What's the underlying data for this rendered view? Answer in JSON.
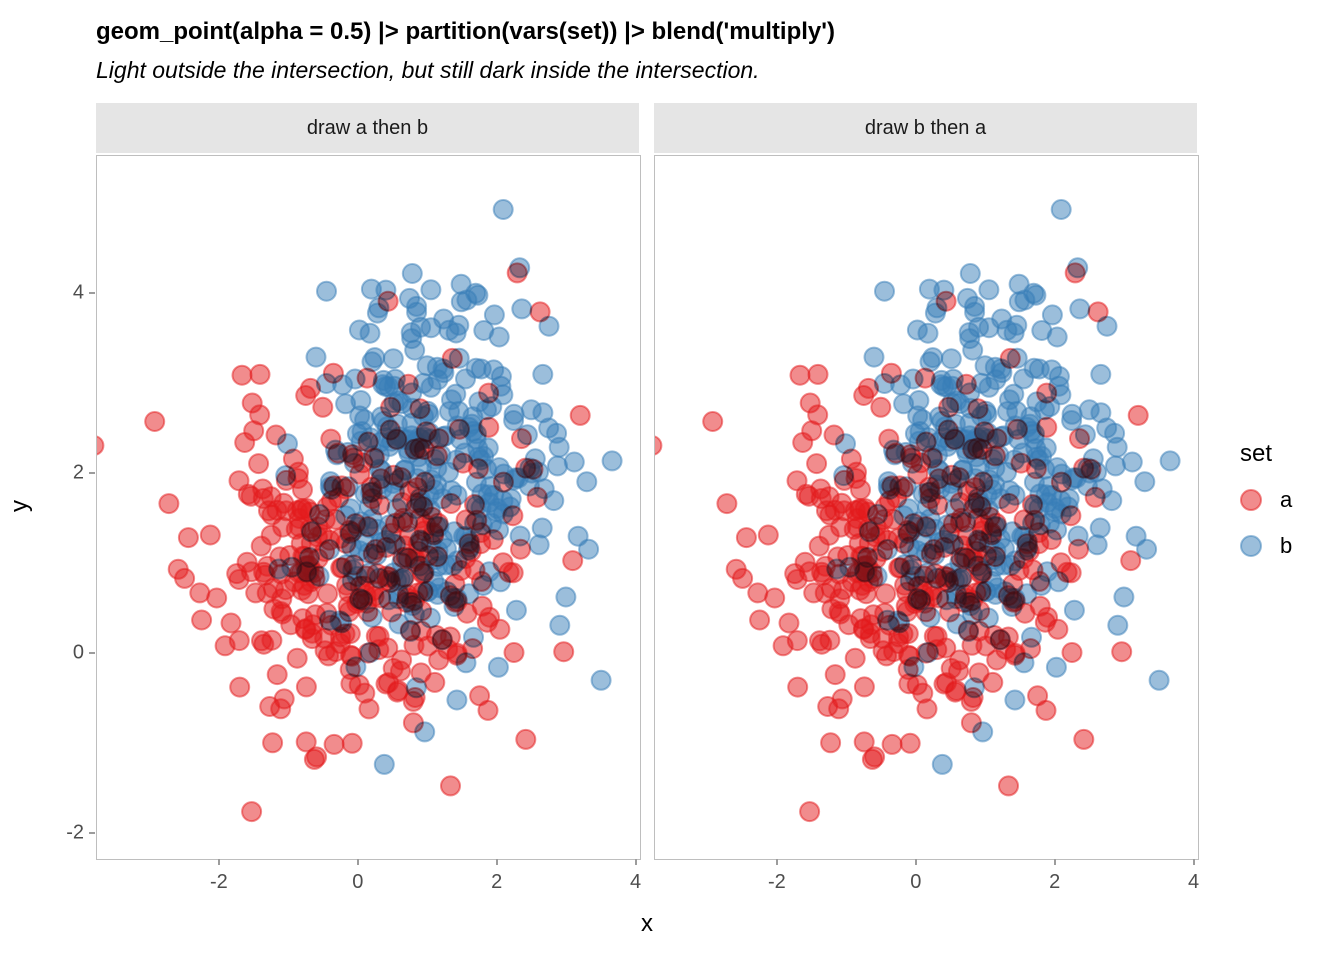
{
  "title": "geom_point(alpha = 0.5) |> partition(vars(set)) |> blend('multiply')",
  "subtitle": "Light outside the intersection, but still dark inside the intersection.",
  "chart_data": {
    "type": "scatter",
    "title": "geom_point(alpha = 0.5) |> partition(vars(set)) |> blend('multiply')",
    "subtitle": "Light outside the intersection, but still dark inside the intersection.",
    "xlabel": "x",
    "ylabel": "y",
    "grid": false,
    "panel_background": "#ffffff",
    "panel_border_color": "#bebebe",
    "strip_background": "#e5e5e5",
    "blend_mode": "multiply",
    "point_alpha": 0.5,
    "point_radius_px": 9.5,
    "facets": [
      {
        "label": "draw a then b",
        "draw_order": [
          "a",
          "b"
        ]
      },
      {
        "label": "draw b then a",
        "draw_order": [
          "b",
          "a"
        ]
      }
    ],
    "x_ticks": [
      "-2",
      "0",
      "2",
      "4"
    ],
    "x_tick_values": [
      -2,
      0,
      2,
      4
    ],
    "y_ticks": [
      "-2",
      "0",
      "2",
      "4"
    ],
    "y_tick_values": [
      -2,
      0,
      2,
      4
    ],
    "xlim": [
      -3.77,
      4.05
    ],
    "ylim": [
      -2.28,
      5.53
    ],
    "series": [
      {
        "name": "a",
        "color": "#E41A1C",
        "n": 320,
        "mean": [
          0.0,
          0.95
        ],
        "sd": [
          1.1,
          0.95
        ],
        "seed": 11
      },
      {
        "name": "b",
        "color": "#377EB8",
        "n": 320,
        "mean": [
          1.0,
          2.05
        ],
        "sd": [
          0.95,
          1.0
        ],
        "seed": 42
      }
    ],
    "legend": {
      "title": "set",
      "position": "right",
      "items": [
        {
          "label": "a",
          "color": "#E41A1C"
        },
        {
          "label": "b",
          "color": "#377EB8"
        }
      ]
    }
  }
}
